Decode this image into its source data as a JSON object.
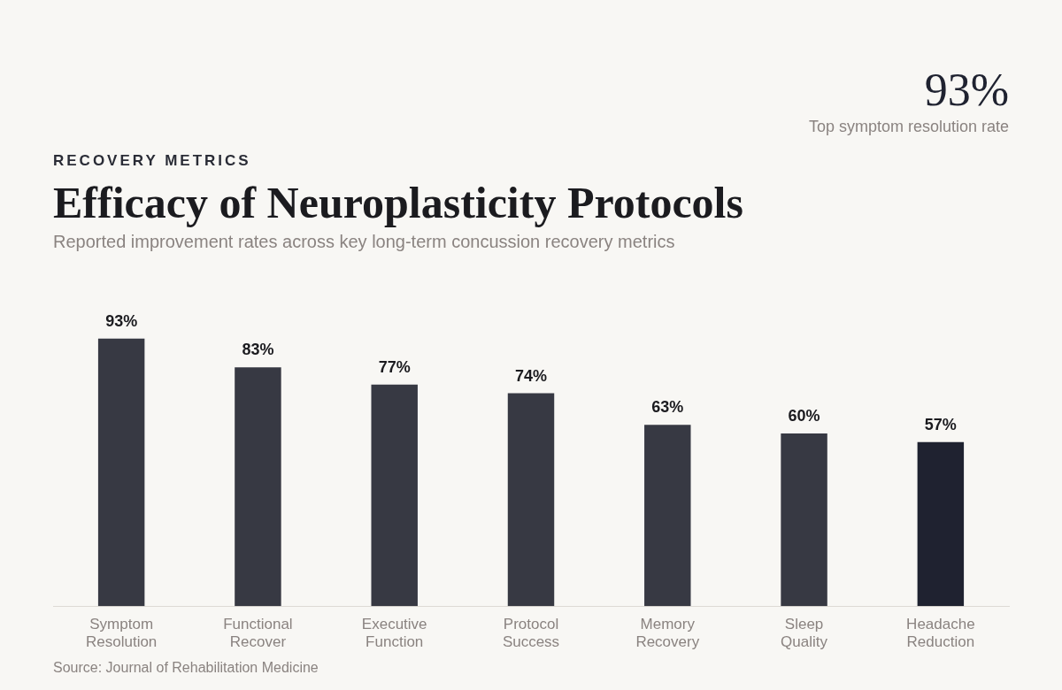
{
  "chart_data": {
    "type": "bar",
    "title": "Efficacy of Neuroplasticity Protocols",
    "subtitle": "Reported improvement rates across key long-term concussion recovery metrics",
    "annotations": [
      "RECOVERY METRICS",
      "93%",
      "Top symptom resolution rate",
      "Source: Journal of Rehabilitation Medicine"
    ],
    "categories": [
      "Symptom Resolution",
      "Functional Recover",
      "Executive Function",
      "Protocol Success",
      "Memory Recovery",
      "Sleep Quality",
      "Headache Reduction"
    ],
    "values": [
      93,
      83,
      77,
      74,
      63,
      60,
      57
    ],
    "value_labels": [
      "93%",
      "83%",
      "77%",
      "74%",
      "63%",
      "60%",
      "57%"
    ],
    "colors": [
      "#373943",
      "#373943",
      "#373943",
      "#373943",
      "#373943",
      "#373943",
      "#1f2230"
    ],
    "grid": false,
    "legend": false
  }
}
